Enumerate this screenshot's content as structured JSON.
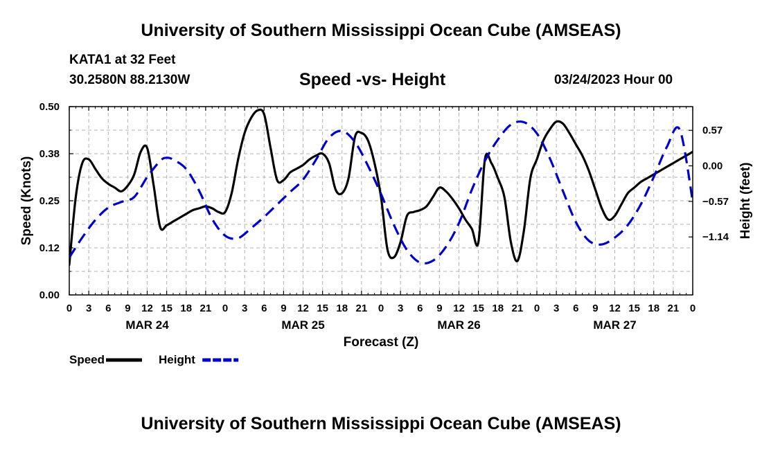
{
  "header": {
    "title": "University of Southern Mississippi Ocean Cube (AMSEAS)",
    "station": "KATA1 at 32 Feet",
    "coordinates": "30.2580N  88.2130W",
    "chart_title": "Speed -vs- Height",
    "date": "03/24/2023 Hour 00"
  },
  "footer": {
    "title": "University of Southern Mississippi Ocean Cube (AMSEAS)"
  },
  "chart_data": {
    "type": "line",
    "title": "Speed -vs- Height",
    "xlabel": "Forecast (Z)",
    "ylabel": "Speed (Knots)",
    "y2label": "Height (feet)",
    "xlim": [
      0,
      96
    ],
    "ylim": [
      0,
      0.5
    ],
    "y2lim": [
      -2.07,
      0.95
    ],
    "grid": true,
    "x_tick_values": [
      0,
      3,
      6,
      9,
      12,
      15,
      18,
      21,
      24,
      27,
      30,
      33,
      36,
      39,
      42,
      45,
      48,
      51,
      54,
      57,
      60,
      63,
      66,
      69,
      72,
      75,
      78,
      81,
      84,
      87,
      90,
      93,
      96
    ],
    "x_tick_labels": [
      "0",
      "3",
      "6",
      "9",
      "12",
      "15",
      "18",
      "21",
      "0",
      "3",
      "6",
      "9",
      "12",
      "15",
      "18",
      "21",
      "0",
      "3",
      "6",
      "9",
      "12",
      "15",
      "18",
      "21",
      "0",
      "3",
      "6",
      "9",
      "12",
      "15",
      "18",
      "21",
      "0"
    ],
    "date_labels": [
      {
        "label": "MAR 24",
        "x": 12
      },
      {
        "label": "MAR 25",
        "x": 36
      },
      {
        "label": "MAR 26",
        "x": 60
      },
      {
        "label": "MAR 27",
        "x": 84
      }
    ],
    "y_tick_values": [
      0.0,
      0.125,
      0.25,
      0.375,
      0.5
    ],
    "y_tick_labels": [
      "0.00",
      "0.12",
      "0.25",
      "0.38",
      "0.50"
    ],
    "y2_tick_values": [
      -1.14,
      -0.57,
      0.0,
      0.57
    ],
    "y2_tick_labels": [
      "-1.14",
      "-0.57",
      "0.00",
      "0.57"
    ],
    "series": [
      {
        "name": "Speed",
        "axis": "left",
        "color": "#000000",
        "dash": "solid",
        "x": [
          0,
          1,
          2,
          3,
          4,
          5,
          6,
          7,
          8,
          9,
          10,
          11,
          12,
          13,
          14,
          15,
          16,
          17,
          18,
          19,
          20,
          21,
          22,
          23,
          24,
          25,
          26,
          27,
          28,
          29,
          30,
          31,
          32,
          33,
          34,
          35,
          36,
          37,
          38,
          39,
          40,
          41,
          42,
          43,
          44,
          45,
          46,
          47,
          48,
          49,
          50,
          51,
          52,
          53,
          54,
          55,
          56,
          57,
          58,
          59,
          60,
          61,
          62,
          63,
          64,
          65,
          66,
          67,
          68,
          69,
          70,
          71,
          72,
          73,
          74,
          75,
          76,
          77,
          78,
          79,
          80,
          81,
          82,
          83,
          84,
          85,
          86,
          87,
          88,
          89,
          90,
          91,
          92,
          93,
          94,
          95,
          96
        ],
        "values": [
          0.08,
          0.26,
          0.35,
          0.36,
          0.335,
          0.31,
          0.295,
          0.285,
          0.275,
          0.29,
          0.32,
          0.38,
          0.39,
          0.29,
          0.18,
          0.185,
          0.195,
          0.205,
          0.215,
          0.225,
          0.23,
          0.235,
          0.23,
          0.22,
          0.22,
          0.27,
          0.36,
          0.43,
          0.47,
          0.49,
          0.48,
          0.39,
          0.305,
          0.305,
          0.325,
          0.335,
          0.345,
          0.36,
          0.37,
          0.375,
          0.35,
          0.28,
          0.27,
          0.31,
          0.42,
          0.43,
          0.41,
          0.35,
          0.26,
          0.12,
          0.1,
          0.14,
          0.21,
          0.22,
          0.225,
          0.235,
          0.26,
          0.285,
          0.275,
          0.255,
          0.23,
          0.2,
          0.175,
          0.14,
          0.36,
          0.35,
          0.31,
          0.26,
          0.14,
          0.09,
          0.17,
          0.31,
          0.36,
          0.41,
          0.44,
          0.46,
          0.455,
          0.43,
          0.4,
          0.37,
          0.33,
          0.28,
          0.23,
          0.2,
          0.21,
          0.24,
          0.27,
          0.285,
          0.3,
          0.31,
          0.32,
          0.33,
          0.34,
          0.35,
          0.36,
          0.37,
          0.38
        ]
      },
      {
        "name": "Height",
        "axis": "right",
        "color": "#0000cc",
        "dash": "dashed",
        "x": [
          0,
          2,
          4,
          6,
          8,
          10,
          12,
          14,
          15,
          16,
          18,
          20,
          22,
          24,
          26,
          28,
          30,
          32,
          34,
          36,
          38,
          40,
          42,
          44,
          46,
          48,
          50,
          52,
          54,
          56,
          58,
          60,
          62,
          64,
          66,
          68,
          70,
          72,
          74,
          76,
          78,
          80,
          82,
          84,
          86,
          88,
          90,
          92,
          94,
          96
        ],
        "values": [
          -1.47,
          -1.15,
          -0.87,
          -0.67,
          -0.58,
          -0.5,
          -0.18,
          0.08,
          0.13,
          0.1,
          -0.05,
          -0.4,
          -0.85,
          -1.12,
          -1.16,
          -1.0,
          -0.82,
          -0.62,
          -0.42,
          -0.22,
          0.1,
          0.45,
          0.56,
          0.38,
          0.0,
          -0.45,
          -0.95,
          -1.35,
          -1.55,
          -1.52,
          -1.3,
          -0.92,
          -0.38,
          0.08,
          0.42,
          0.66,
          0.7,
          0.52,
          0.12,
          -0.4,
          -0.9,
          -1.2,
          -1.26,
          -1.15,
          -0.95,
          -0.62,
          -0.18,
          0.3,
          0.58,
          -0.57
        ]
      }
    ],
    "legend": [
      {
        "label": "Speed",
        "color": "#000000",
        "dash": "solid"
      },
      {
        "label": "Height",
        "color": "#0000cc",
        "dash": "dashed"
      }
    ],
    "legend_position": "bottom-left"
  }
}
